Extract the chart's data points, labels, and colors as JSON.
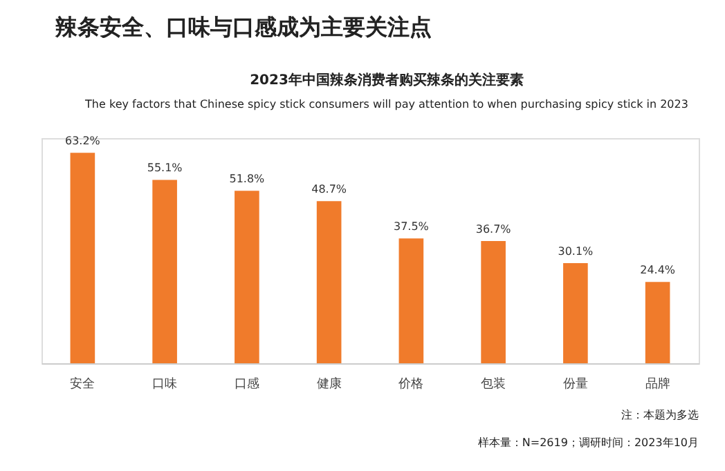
{
  "chart_data": {
    "type": "bar",
    "title": "辣条安全、口味与口感成为主要关注点",
    "subtitle": "2023年中国辣条消费者购买辣条的关注要素",
    "categories": [
      "安全",
      "口味",
      "口感",
      "健康",
      "价格",
      "包装",
      "份量",
      "品牌"
    ],
    "values": [
      63.2,
      55.1,
      51.8,
      48.7,
      37.5,
      36.7,
      30.1,
      24.4
    ],
    "color": "#f07b2b",
    "value_labels": [
      "63.2%",
      "55.1%",
      "51.8%",
      "48.7%",
      "37.5%",
      "36.7%",
      "30.1%",
      "24.4%"
    ],
    "annotations": [
      "The key factors that Chinese spicy stick consumers will pay attention to when purchasing spicy stick in 2023",
      "注：本题为多选",
      "样本量：N=2619；调研时间：2023年10月"
    ]
  }
}
